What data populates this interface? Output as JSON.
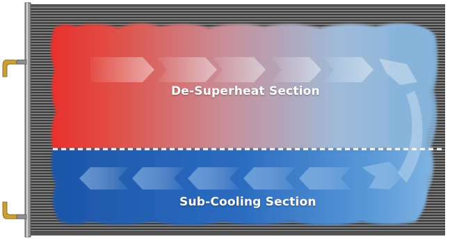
{
  "sections": {
    "top_label": "De-Superheat Section",
    "bottom_label": "Sub-Cooling Section"
  },
  "colors": {
    "hot": "#e8302c",
    "warm": "#c47a86",
    "cool_light": "#86b4dc",
    "sub_cool_dark": "#1d5bb0",
    "sub_cool_mid": "#3f86d2",
    "fin_dark": "#3a3a3a",
    "fin_light": "#8a8a8a",
    "divider": "#ffffff"
  },
  "icons": {
    "top_arrows": "chevron-right-icon",
    "bottom_arrows": "chevron-left-icon"
  }
}
